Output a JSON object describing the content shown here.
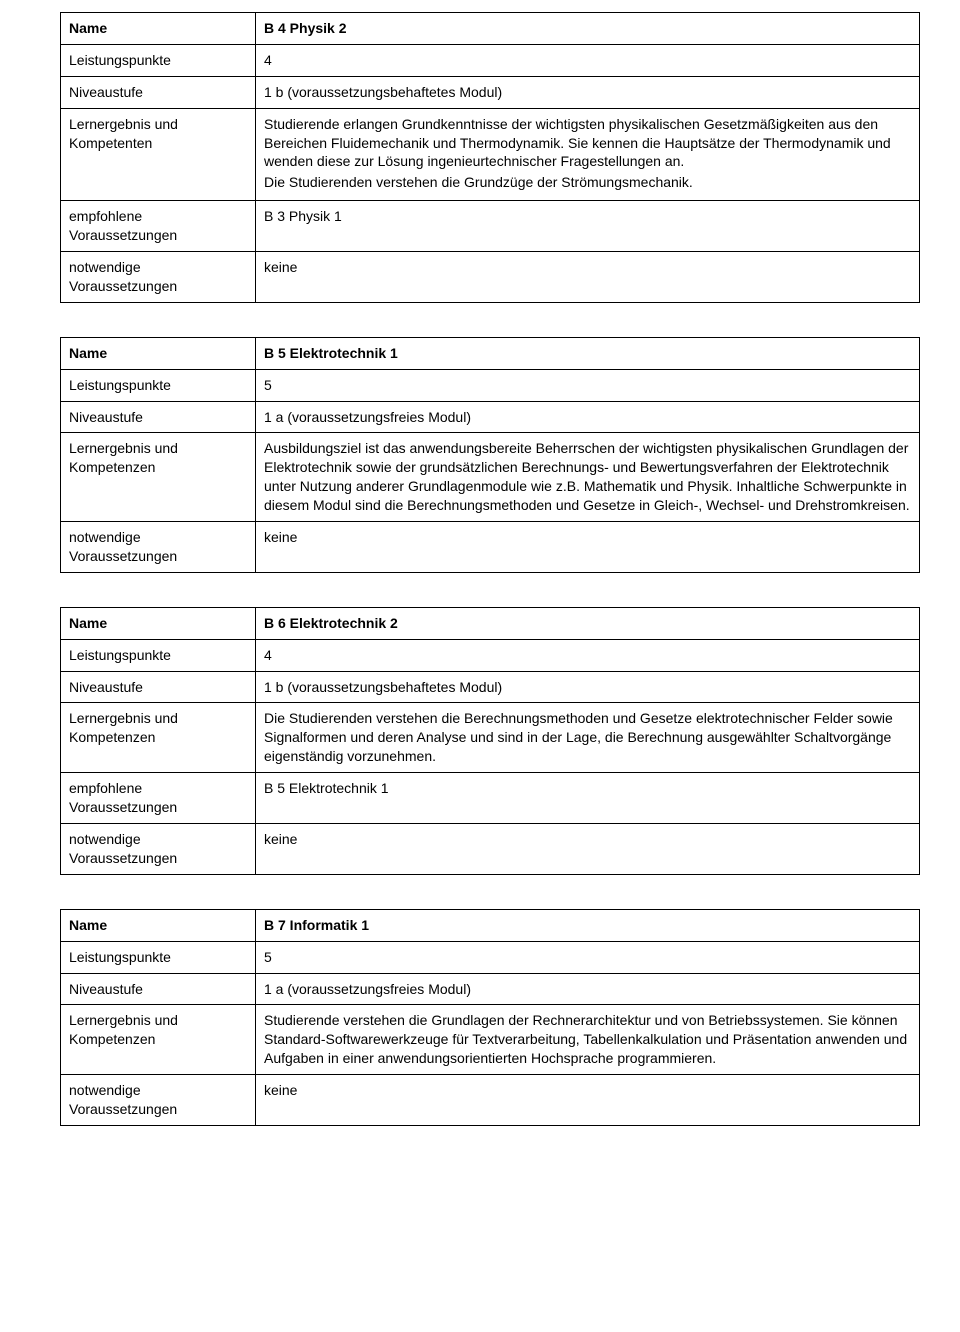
{
  "labels": {
    "name": "Name",
    "credits": "Leistungspunkte",
    "level": "Niveaustufe",
    "outcomeK": "Lernergebnis und Kompetenzen",
    "outcomeT": "Lernergebnis und Kompetenten",
    "recommended": "empfohlene Voraussetzungen",
    "required": "notwendige Voraussetzungen"
  },
  "common": {
    "none": "keine",
    "level_1a": "1 a (voraussetzungsfreies Modul)",
    "level_1b": "1 b (voraussetzungsbehaftetes Modul)"
  },
  "modules": {
    "b4": {
      "title": "B 4 Physik 2",
      "credits": "4",
      "outcome_p1": "Studierende erlangen Grundkenntnisse der wichtigsten physikalischen Gesetzmäßigkeiten aus den Bereichen Fluidemechanik und Thermodynamik. Sie kennen die Hauptsätze der Thermodynamik und wenden diese zur Lösung ingenieurtechnischer Fragestellungen an.",
      "outcome_p2": "Die Studierenden verstehen die Grundzüge der Strömungsmechanik.",
      "recommended": "B 3 Physik 1"
    },
    "b5": {
      "title": "B 5 Elektrotechnik 1",
      "credits": "5",
      "outcome": "Ausbildungsziel ist das anwendungsbereite Beherrschen der wichtigsten physikalischen Grundlagen der Elektrotechnik sowie der grundsätzlichen Berechnungs- und Bewertungsverfahren der Elektrotechnik unter Nutzung anderer Grundlagenmodule wie z.B. Mathematik und Physik.  Inhaltliche Schwerpunkte in diesem Modul sind die Berechnungsmethoden und Gesetze in Gleich-, Wechsel- und Drehstromkreisen."
    },
    "b6": {
      "title": "B 6 Elektrotechnik 2",
      "credits": "4",
      "outcome": "Die Studierenden verstehen die Berechnungsmethoden und Gesetze elektrotechnischer Felder sowie Signalformen und deren Analyse und sind in der Lage, die Berechnung ausgewählter Schaltvorgänge eigenständig vorzunehmen.",
      "recommended": "B 5 Elektrotechnik 1"
    },
    "b7": {
      "title": "B 7 Informatik 1",
      "credits": "5",
      "outcome": "Studierende verstehen die Grundlagen der Rechnerarchitektur und von Betriebssystemen.  Sie können Standard-Softwarewerkzeuge für Textverarbeitung, Tabellenkalkulation und Präsentation anwenden und Aufgaben in einer anwendungsorientierten Hochsprache programmieren."
    }
  }
}
